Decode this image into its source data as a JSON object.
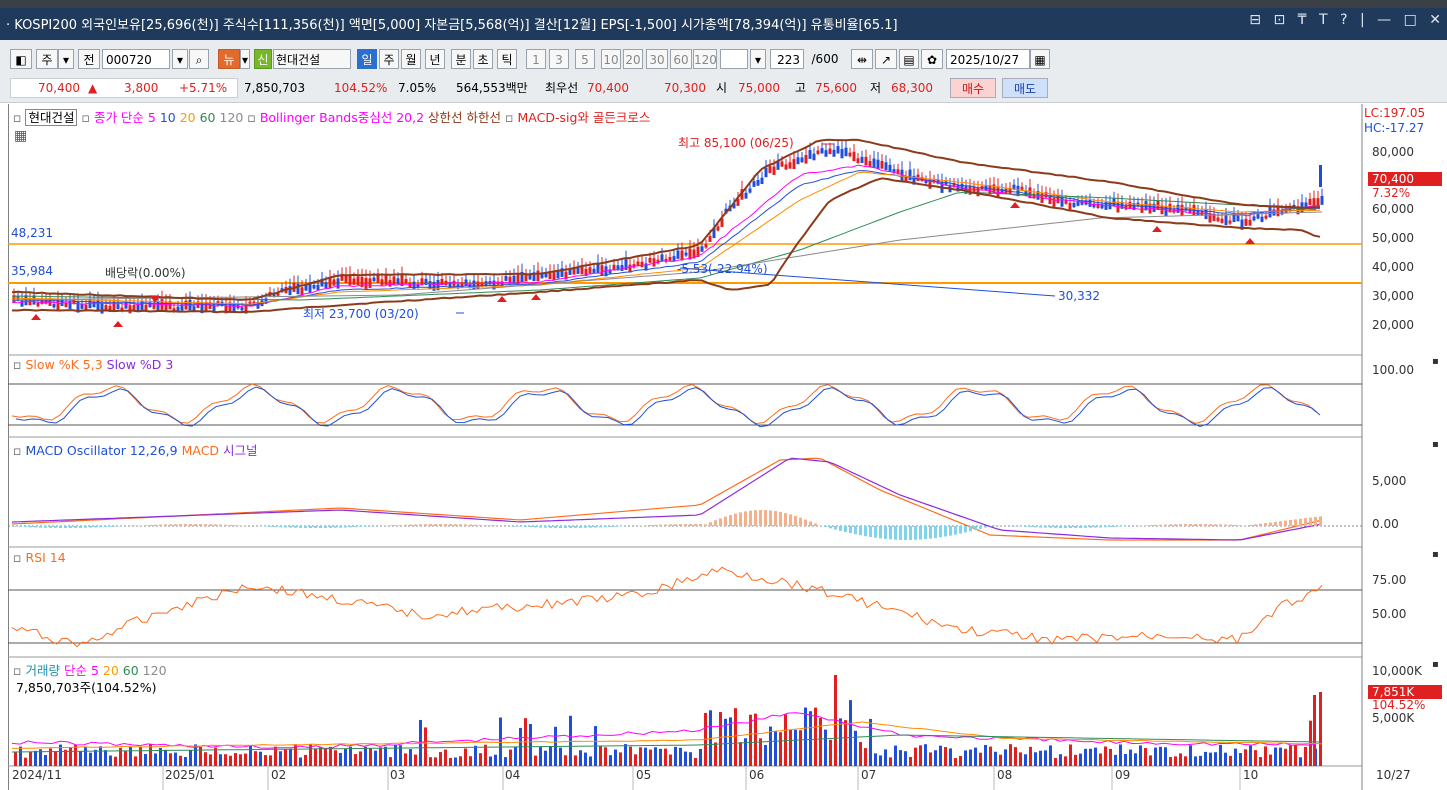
{
  "title_bar": {
    "text": "· KOSPI200 외국인보유[25,696(천)] 주식수[111,356(천)] 액면[5,000] 자본금[5,568(억)] 결산[12월] EPS[-1,500] 시가총액[78,394(억)] 유통비율[65.1]",
    "controls": [
      "⊟",
      "⊡",
      "₸",
      "T",
      "?",
      "|",
      "—",
      "□",
      "✕"
    ]
  },
  "toolbar": {
    "type_label": "주",
    "scope_label": "전",
    "code_value": "000720",
    "news_label": "뉴",
    "new_label": "신",
    "stock_name": "현대건설",
    "periods": [
      "일",
      "주",
      "월",
      "년",
      "분",
      "초",
      "틱"
    ],
    "active_period": "일",
    "intervals": [
      "1",
      "3",
      "5",
      "10",
      "20",
      "30",
      "60",
      "120"
    ],
    "count_value": "223",
    "count_total": "/600",
    "date_value": "2025/10/27"
  },
  "quote": {
    "price": "70,400",
    "change_arrow": "▲",
    "change": "3,800",
    "change_pct": "+5.71%",
    "volume": "7,850,703",
    "volume_ratio": "104.52%",
    "turnover": "7.05%",
    "amount": "564,553백만",
    "best_label": "최우선",
    "ask": "70,400",
    "bid": "70,300",
    "open_label": "시",
    "open": "75,000",
    "high_label": "고",
    "high": "75,600",
    "low_label": "저",
    "low": "68,300",
    "buy_label": "매수",
    "sell_label": "매도"
  },
  "legends": {
    "price": {
      "name": "현대건설",
      "ma": "종가 단순 5",
      "ma10": "10",
      "ma20": "20",
      "ma60": "60",
      "ma120": "120",
      "bb": "Bollinger Bands중심선 20,2",
      "bb_upper": "상한선",
      "bb_lower": "하한선",
      "macd_sig": "MACD-sig와 골든크로스"
    },
    "stoch": {
      "k": "Slow %K 5,3",
      "d": "Slow %D 3"
    },
    "macd": {
      "osc": "MACD Oscillator 12,26,9",
      "macd": "MACD",
      "signal": "시그널"
    },
    "rsi": {
      "rsi": "RSI 14"
    },
    "volume": {
      "name": "거래량",
      "ma": "단순 5",
      "ma20": "20",
      "ma60": "60",
      "ma120": "120",
      "info": "7,850,703주(104.52%)"
    }
  },
  "annotations": {
    "high": "최고 85,100 (06/25)",
    "low": "최저 23,700 (03/20)",
    "dividend": "배당락(0.00%)",
    "line_48231": "48,231",
    "line_35984": "35,984",
    "trend_label": "-5.53(-22.94%)",
    "trend_end": "30,332",
    "lc": "LC:197.05",
    "hc": "HC:-17.27"
  },
  "right_axis": {
    "price_ticks": [
      "80,000",
      "70,000",
      "60,000",
      "50,000",
      "40,000",
      "30,000",
      "20,000"
    ],
    "price_badge": "70,400",
    "price_badge_pct": "7.32%",
    "stoch_tick": "100.00",
    "macd_ticks": [
      "5,000",
      "0.00"
    ],
    "rsi_ticks": [
      "75.00",
      "50.00"
    ],
    "vol_ticks": [
      "10,000K",
      "5,000K"
    ],
    "vol_badge": "7,851K",
    "vol_badge_pct": "104.52%"
  },
  "x_axis": {
    "labels": [
      "2024/11",
      "2025/01",
      "02",
      "03",
      "04",
      "05",
      "06",
      "07",
      "08",
      "09",
      "10"
    ],
    "end_label": "10/27"
  },
  "colors": {
    "up": "#e02020",
    "down": "#1f4fd8",
    "bb": "#8b3a1a",
    "ma5": "#ff00ff",
    "ma20": "#ff8c00",
    "ma60": "#2e8b57",
    "ma120": "#8a8a8a",
    "hline": "#ff9900",
    "stoch_k": "#ff6b1a",
    "stoch_d": "#1f4fd8",
    "macd": "#ff6b1a",
    "signal": "#8a2be2",
    "rsi": "#ff6b1a"
  }
}
